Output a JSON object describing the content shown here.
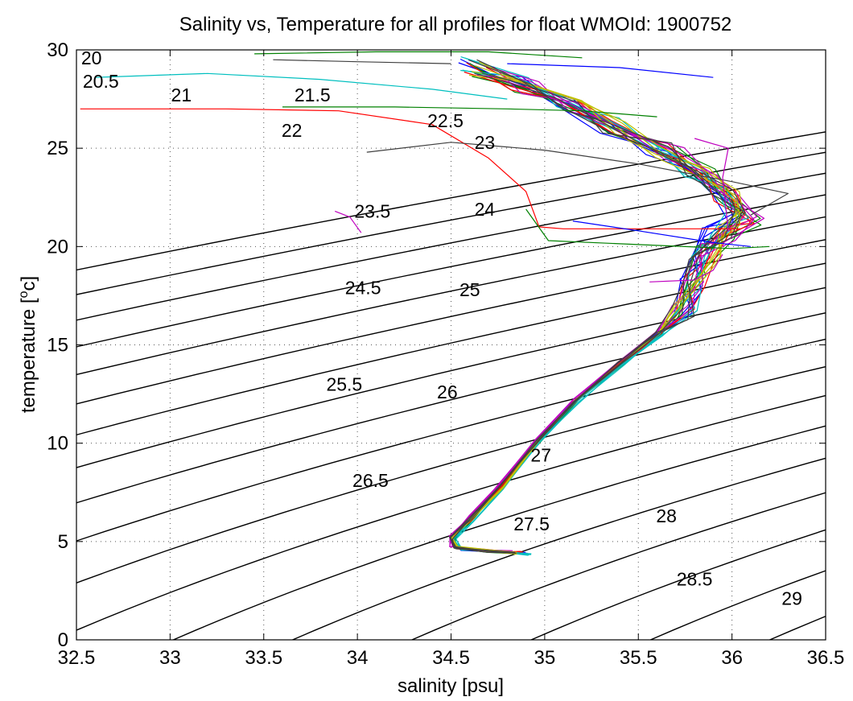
{
  "chart_data": {
    "type": "line",
    "title": "Salinity vs, Temperature for all profiles for float WMOId: 1900752",
    "xlabel": "salinity [psu]",
    "ylabel": "temperature [",
    "ylabel_sup": "o",
    "ylabel_suffix": "c]",
    "xlim": [
      32.5,
      36.5
    ],
    "ylim": [
      0,
      30
    ],
    "x_ticks": [
      32.5,
      33,
      33.5,
      34,
      34.5,
      35,
      35.5,
      36,
      36.5
    ],
    "x_tick_labels": [
      "32.5",
      "33",
      "33.5",
      "34",
      "34.5",
      "35",
      "35.5",
      "36",
      "36.5"
    ],
    "y_ticks": [
      0,
      5,
      10,
      15,
      20,
      25,
      30
    ],
    "y_tick_labels": [
      "0",
      "5",
      "10",
      "15",
      "20",
      "25",
      "30"
    ],
    "grid": true,
    "density_contours": {
      "levels": [
        20,
        20.5,
        21,
        21.5,
        22,
        22.5,
        23,
        23.5,
        24,
        24.5,
        25,
        25.5,
        26,
        26.5,
        27,
        27.5,
        28,
        28.5,
        29
      ],
      "labels": [
        {
          "text": "20",
          "s": 32.58,
          "t": 29.6
        },
        {
          "text": "20.5",
          "s": 32.63,
          "t": 28.4
        },
        {
          "text": "21",
          "s": 33.06,
          "t": 27.7
        },
        {
          "text": "21.5",
          "s": 33.76,
          "t": 27.7
        },
        {
          "text": "22",
          "s": 33.65,
          "t": 25.9
        },
        {
          "text": "22.5",
          "s": 34.47,
          "t": 26.4
        },
        {
          "text": "23",
          "s": 34.68,
          "t": 25.3
        },
        {
          "text": "23.5",
          "s": 34.08,
          "t": 21.8
        },
        {
          "text": "24",
          "s": 34.68,
          "t": 21.9
        },
        {
          "text": "24.5",
          "s": 34.03,
          "t": 17.9
        },
        {
          "text": "25",
          "s": 34.6,
          "t": 17.8
        },
        {
          "text": "25.5",
          "s": 33.93,
          "t": 13.0
        },
        {
          "text": "26",
          "s": 34.48,
          "t": 12.6
        },
        {
          "text": "26.5",
          "s": 34.07,
          "t": 8.1
        },
        {
          "text": "27",
          "s": 34.98,
          "t": 9.4
        },
        {
          "text": "27.5",
          "s": 34.93,
          "t": 5.9
        },
        {
          "text": "28",
          "s": 35.65,
          "t": 6.3
        },
        {
          "text": "28.5",
          "s": 35.8,
          "t": 3.1
        },
        {
          "text": "29",
          "s": 36.32,
          "t": 2.1
        }
      ]
    },
    "series": [
      {
        "color": "#0000ff",
        "points": [
          [
            34.9,
            4.4
          ],
          [
            34.75,
            4.5
          ],
          [
            34.55,
            4.6
          ],
          [
            34.5,
            5.1
          ],
          [
            34.6,
            6.0
          ],
          [
            34.75,
            7.6
          ],
          [
            34.95,
            10.0
          ],
          [
            35.15,
            12.0
          ],
          [
            35.4,
            14.0
          ],
          [
            35.6,
            15.5
          ],
          [
            35.74,
            16.5
          ],
          [
            35.78,
            18.0
          ],
          [
            35.82,
            19.5
          ],
          [
            35.9,
            20.8
          ],
          [
            36.0,
            21.6
          ],
          [
            35.92,
            22.6
          ],
          [
            35.78,
            23.8
          ],
          [
            35.6,
            25.0
          ],
          [
            35.35,
            26.1
          ],
          [
            35.1,
            27.2
          ],
          [
            34.85,
            28.3
          ],
          [
            34.6,
            29.2
          ]
        ]
      },
      {
        "color": "#008000",
        "points": [
          [
            34.85,
            4.4
          ],
          [
            34.7,
            4.5
          ],
          [
            34.52,
            4.7
          ],
          [
            34.52,
            5.2
          ],
          [
            34.62,
            6.2
          ],
          [
            34.78,
            7.8
          ],
          [
            34.98,
            10.2
          ],
          [
            35.18,
            12.2
          ],
          [
            35.42,
            14.1
          ],
          [
            35.62,
            15.6
          ],
          [
            35.76,
            16.7
          ],
          [
            35.8,
            18.2
          ],
          [
            35.86,
            19.7
          ],
          [
            35.98,
            20.6
          ],
          [
            36.1,
            21.4
          ],
          [
            36.0,
            22.4
          ],
          [
            35.85,
            23.6
          ],
          [
            35.66,
            24.8
          ],
          [
            35.4,
            26.0
          ],
          [
            35.15,
            27.1
          ],
          [
            34.9,
            28.2
          ],
          [
            34.66,
            29.0
          ]
        ]
      },
      {
        "color": "#ff0000",
        "points": [
          [
            34.88,
            4.45
          ],
          [
            34.72,
            4.5
          ],
          [
            34.54,
            4.65
          ],
          [
            34.51,
            5.15
          ],
          [
            34.6,
            6.1
          ],
          [
            34.76,
            7.7
          ],
          [
            34.96,
            10.1
          ],
          [
            35.16,
            12.1
          ],
          [
            35.41,
            14.05
          ],
          [
            35.61,
            15.55
          ],
          [
            35.75,
            16.6
          ],
          [
            35.8,
            18.1
          ],
          [
            35.85,
            19.6
          ],
          [
            35.95,
            20.7
          ],
          [
            36.06,
            21.5
          ],
          [
            35.96,
            22.5
          ],
          [
            35.82,
            23.7
          ],
          [
            35.63,
            24.9
          ],
          [
            35.38,
            26.05
          ],
          [
            35.12,
            27.15
          ],
          [
            34.88,
            28.25
          ],
          [
            34.63,
            29.1
          ]
        ]
      },
      {
        "color": "#00bfbf",
        "points": [
          [
            34.92,
            4.35
          ],
          [
            34.76,
            4.5
          ],
          [
            34.56,
            4.6
          ],
          [
            34.52,
            5.1
          ],
          [
            34.61,
            6.05
          ],
          [
            34.77,
            7.65
          ],
          [
            34.97,
            10.05
          ],
          [
            35.17,
            12.05
          ],
          [
            35.42,
            14.0
          ],
          [
            35.62,
            15.5
          ],
          [
            35.76,
            16.55
          ],
          [
            35.79,
            17.9
          ],
          [
            35.84,
            19.4
          ],
          [
            35.93,
            20.9
          ],
          [
            36.03,
            21.7
          ],
          [
            35.94,
            22.7
          ],
          [
            35.8,
            23.9
          ],
          [
            35.61,
            25.1
          ],
          [
            35.36,
            26.2
          ],
          [
            35.11,
            27.3
          ],
          [
            34.86,
            28.4
          ],
          [
            34.61,
            29.3
          ]
        ]
      },
      {
        "color": "#bf00bf",
        "points": [
          [
            34.82,
            4.5
          ],
          [
            34.68,
            4.55
          ],
          [
            34.5,
            4.75
          ],
          [
            34.5,
            5.25
          ],
          [
            34.6,
            6.25
          ],
          [
            34.76,
            7.85
          ],
          [
            34.96,
            10.25
          ],
          [
            35.16,
            12.25
          ],
          [
            35.4,
            14.15
          ],
          [
            35.6,
            15.65
          ],
          [
            35.74,
            16.75
          ],
          [
            35.79,
            18.3
          ],
          [
            35.87,
            19.8
          ],
          [
            35.99,
            20.5
          ],
          [
            36.12,
            21.2
          ],
          [
            36.02,
            22.3
          ],
          [
            35.88,
            23.5
          ],
          [
            35.69,
            24.7
          ],
          [
            35.43,
            25.9
          ],
          [
            35.18,
            27.0
          ],
          [
            34.93,
            28.1
          ],
          [
            34.69,
            28.9
          ]
        ]
      },
      {
        "color": "#bfbf00",
        "points": [
          [
            34.86,
            4.4
          ],
          [
            34.73,
            4.5
          ],
          [
            34.53,
            4.7
          ],
          [
            34.51,
            5.2
          ],
          [
            34.61,
            6.15
          ],
          [
            34.77,
            7.75
          ],
          [
            34.97,
            10.15
          ],
          [
            35.17,
            12.15
          ],
          [
            35.41,
            14.1
          ],
          [
            35.61,
            15.6
          ],
          [
            35.75,
            16.65
          ],
          [
            35.81,
            18.15
          ],
          [
            35.88,
            19.65
          ],
          [
            35.97,
            20.65
          ],
          [
            36.08,
            21.45
          ],
          [
            35.98,
            22.45
          ],
          [
            35.84,
            23.65
          ],
          [
            35.65,
            24.85
          ],
          [
            35.39,
            26.0
          ],
          [
            35.14,
            27.1
          ],
          [
            34.89,
            28.2
          ],
          [
            34.65,
            29.05
          ]
        ]
      },
      {
        "color": "#404040",
        "points": [
          [
            34.84,
            4.45
          ],
          [
            34.7,
            4.5
          ],
          [
            34.52,
            4.68
          ],
          [
            34.5,
            5.18
          ],
          [
            34.6,
            6.12
          ],
          [
            34.76,
            7.72
          ],
          [
            34.96,
            10.12
          ],
          [
            35.16,
            12.12
          ],
          [
            35.4,
            14.08
          ],
          [
            35.6,
            15.58
          ],
          [
            35.74,
            16.62
          ],
          [
            35.79,
            18.05
          ],
          [
            35.83,
            19.55
          ],
          [
            35.94,
            20.75
          ],
          [
            36.05,
            21.55
          ],
          [
            35.95,
            22.55
          ],
          [
            35.81,
            23.75
          ],
          [
            35.62,
            24.95
          ],
          [
            35.37,
            26.1
          ],
          [
            35.12,
            27.2
          ],
          [
            34.87,
            28.3
          ],
          [
            34.62,
            29.15
          ]
        ]
      }
    ],
    "outlier_segments": [
      {
        "color": "#ff0000",
        "points": [
          [
            32.52,
            27.0
          ],
          [
            33.3,
            27.0
          ],
          [
            33.9,
            26.9
          ],
          [
            34.4,
            26.2
          ],
          [
            34.7,
            24.5
          ],
          [
            34.9,
            22.8
          ],
          [
            34.97,
            21.0
          ],
          [
            35.1,
            20.9
          ],
          [
            35.6,
            20.9
          ],
          [
            36.05,
            20.9
          ]
        ]
      },
      {
        "color": "#008000",
        "points": [
          [
            33.6,
            27.1
          ],
          [
            34.2,
            27.1
          ],
          [
            34.8,
            27.0
          ],
          [
            35.2,
            26.9
          ],
          [
            35.6,
            26.6
          ]
        ]
      },
      {
        "color": "#00bfbf",
        "points": [
          [
            32.6,
            28.6
          ],
          [
            33.2,
            28.8
          ],
          [
            33.8,
            28.5
          ],
          [
            34.4,
            28.0
          ],
          [
            34.8,
            27.5
          ]
        ]
      },
      {
        "color": "#404040",
        "points": [
          [
            34.05,
            24.8
          ],
          [
            34.5,
            25.3
          ],
          [
            35.0,
            24.9
          ],
          [
            35.5,
            24.2
          ],
          [
            36.0,
            23.3
          ],
          [
            36.3,
            22.7
          ],
          [
            36.1,
            21.6
          ]
        ]
      },
      {
        "color": "#008000",
        "points": [
          [
            34.9,
            21.9
          ],
          [
            35.02,
            20.3
          ],
          [
            35.5,
            20.1
          ],
          [
            36.0,
            19.9
          ],
          [
            36.2,
            20.0
          ]
        ]
      },
      {
        "color": "#bf00bf",
        "points": [
          [
            33.88,
            21.8
          ],
          [
            33.96,
            21.5
          ],
          [
            34.02,
            20.7
          ]
        ]
      },
      {
        "color": "#bf00bf",
        "points": [
          [
            35.56,
            18.2
          ],
          [
            35.8,
            18.3
          ],
          [
            35.9,
            18.8
          ],
          [
            35.95,
            19.6
          ]
        ]
      },
      {
        "color": "#bf00bf",
        "points": [
          [
            35.98,
            20.8
          ],
          [
            35.95,
            23.5
          ],
          [
            35.98,
            25.0
          ],
          [
            35.8,
            25.5
          ]
        ]
      },
      {
        "color": "#0000ff",
        "points": [
          [
            35.15,
            21.3
          ],
          [
            35.5,
            20.8
          ],
          [
            35.9,
            20.2
          ],
          [
            36.1,
            20.0
          ]
        ]
      },
      {
        "color": "#0000ff",
        "points": [
          [
            34.8,
            29.3
          ],
          [
            35.4,
            29.1
          ],
          [
            35.9,
            28.6
          ]
        ]
      },
      {
        "color": "#008000",
        "points": [
          [
            33.45,
            29.8
          ],
          [
            34.1,
            29.9
          ],
          [
            34.7,
            29.9
          ],
          [
            35.2,
            29.6
          ]
        ]
      },
      {
        "color": "#404040",
        "points": [
          [
            33.55,
            29.5
          ],
          [
            34.0,
            29.4
          ],
          [
            34.5,
            29.3
          ]
        ]
      }
    ]
  }
}
